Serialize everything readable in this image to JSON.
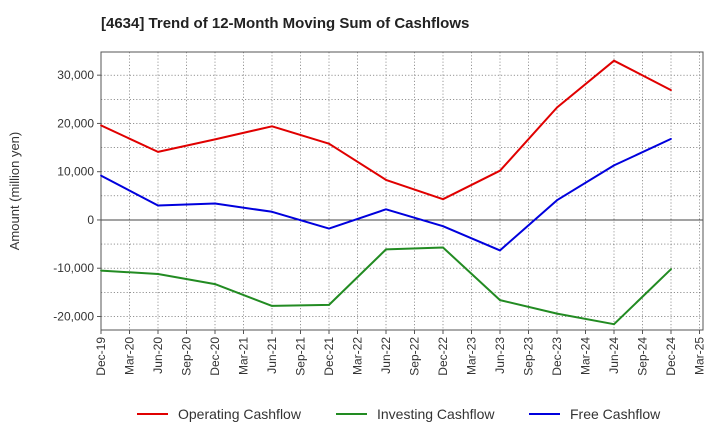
{
  "chart_data": {
    "type": "line",
    "title": "[4634]  Trend of 12-Month Moving Sum of Cashflows",
    "xlabel": "",
    "ylabel": "Amount (million yen)",
    "x_tick_labels": [
      "Dec-19",
      "Mar-20",
      "Jun-20",
      "Sep-20",
      "Dec-20",
      "Mar-21",
      "Jun-21",
      "Sep-21",
      "Dec-21",
      "Mar-22",
      "Jun-22",
      "Sep-22",
      "Dec-22",
      "Mar-23",
      "Jun-23",
      "Sep-23",
      "Dec-23",
      "Mar-24",
      "Jun-24",
      "Sep-24",
      "Dec-24",
      "Mar-25"
    ],
    "y_ticks": [
      -20000,
      -10000,
      0,
      10000,
      20000,
      30000
    ],
    "y_tick_labels": [
      "-20,000",
      "-10,000",
      "0",
      "10,000",
      "20,000",
      "30,000"
    ],
    "ylim": [
      -22800,
      34800
    ],
    "grid": true,
    "legend_position": "bottom",
    "series": [
      {
        "name": "Operating Cashflow",
        "color": "#e00000",
        "x": [
          "Dec-19",
          "Jun-20",
          "Dec-20",
          "Jun-21",
          "Dec-21",
          "Jun-22",
          "Dec-22",
          "Jun-23",
          "Dec-23",
          "Jun-24",
          "Dec-24"
        ],
        "values": [
          19600,
          14100,
          16700,
          19400,
          15800,
          8300,
          4300,
          10200,
          23300,
          33000,
          26900
        ]
      },
      {
        "name": "Investing Cashflow",
        "color": "#228b22",
        "x": [
          "Dec-19",
          "Jun-20",
          "Dec-20",
          "Jun-21",
          "Dec-21",
          "Jun-22",
          "Dec-22",
          "Jun-23",
          "Dec-23",
          "Jun-24",
          "Dec-24"
        ],
        "values": [
          -10500,
          -11200,
          -13300,
          -17800,
          -17600,
          -6100,
          -5700,
          -16600,
          -19400,
          -21600,
          -10200
        ]
      },
      {
        "name": "Free Cashflow",
        "color": "#0000dd",
        "x": [
          "Dec-19",
          "Jun-20",
          "Dec-20",
          "Jun-21",
          "Dec-21",
          "Jun-22",
          "Dec-22",
          "Jun-23",
          "Dec-23",
          "Jun-24",
          "Dec-24"
        ],
        "values": [
          9200,
          3000,
          3400,
          1700,
          -1800,
          2200,
          -1300,
          -6300,
          4100,
          11300,
          16800
        ]
      }
    ]
  }
}
